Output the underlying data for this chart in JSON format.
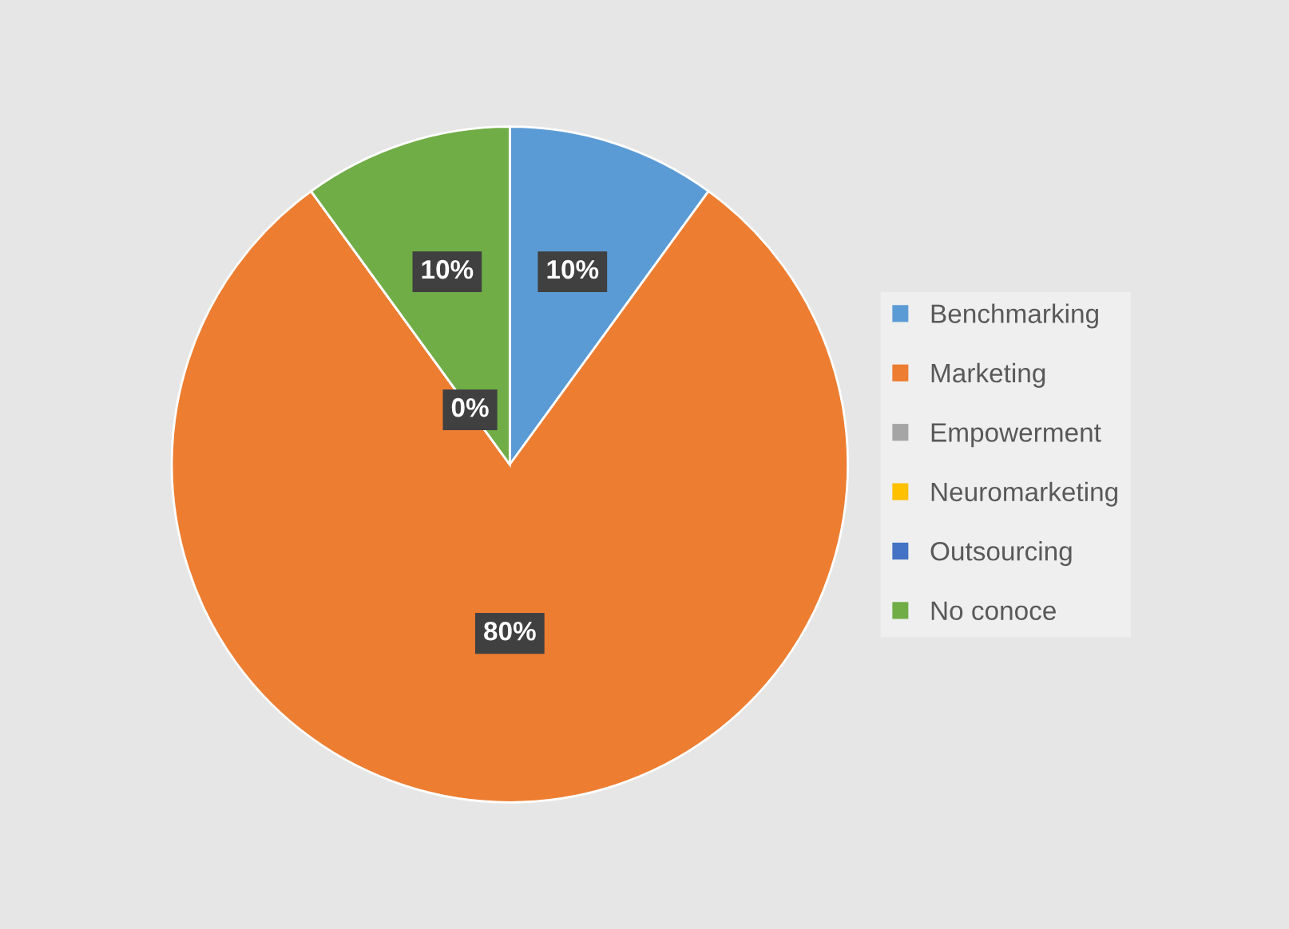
{
  "chart_data": {
    "type": "pie",
    "categories": [
      "Benchmarking",
      "Marketing",
      "Empowerment",
      "Neuromarketing",
      "Outsourcing",
      "No conoce"
    ],
    "values": [
      10,
      80,
      0,
      0,
      0,
      10
    ],
    "colors": [
      "#5b9bd5",
      "#ed7d31",
      "#a5a5a5",
      "#ffc000",
      "#4472c4",
      "#70ad47"
    ],
    "value_labels": [
      "10%",
      "80%",
      "0%",
      null,
      null,
      "10%"
    ],
    "legend": "right"
  }
}
